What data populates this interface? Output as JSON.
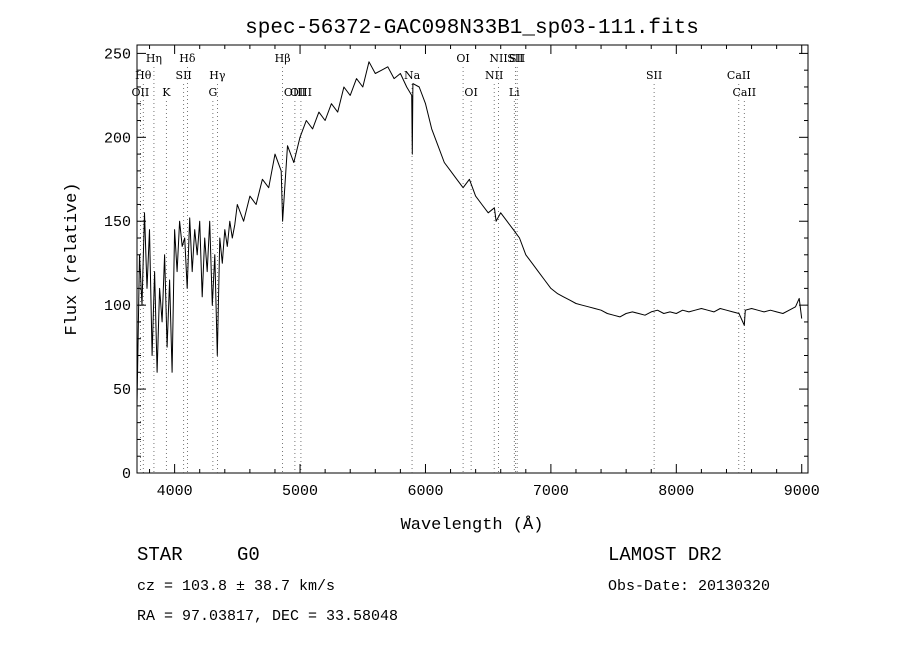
{
  "chart_data": {
    "type": "line",
    "title": "spec-56372-GAC098N33B1_sp03-111.fits",
    "xlabel": "Wavelength (Å)",
    "ylabel": "Flux (relative)",
    "xlim": [
      3700,
      9050
    ],
    "ylim": [
      0,
      255
    ],
    "xticks": [
      4000,
      5000,
      6000,
      7000,
      8000,
      9000
    ],
    "yticks": [
      0,
      50,
      100,
      150,
      200,
      250
    ],
    "grid": false,
    "series": [
      {
        "x": [
          3700,
          3720,
          3740,
          3760,
          3780,
          3800,
          3820,
          3840,
          3860,
          3880,
          3900,
          3920,
          3940,
          3960,
          3980,
          4000,
          4020,
          4040,
          4060,
          4080,
          4100,
          4120,
          4140,
          4160,
          4180,
          4200,
          4220,
          4240,
          4260,
          4280,
          4300,
          4320,
          4340,
          4360,
          4380,
          4400,
          4420,
          4440,
          4460,
          4480,
          4500,
          4550,
          4600,
          4650,
          4700,
          4750,
          4800,
          4850,
          4861,
          4900,
          4950,
          5000,
          5050,
          5100,
          5150,
          5200,
          5250,
          5300,
          5350,
          5400,
          5450,
          5500,
          5550,
          5600,
          5650,
          5700,
          5750,
          5800,
          5850,
          5890,
          5895,
          5900,
          5950,
          6000,
          6050,
          6100,
          6150,
          6200,
          6250,
          6300,
          6350,
          6400,
          6450,
          6500,
          6550,
          6563,
          6600,
          6650,
          6700,
          6750,
          6800,
          6850,
          6900,
          6950,
          7000,
          7050,
          7100,
          7150,
          7200,
          7250,
          7300,
          7350,
          7400,
          7450,
          7500,
          7550,
          7600,
          7650,
          7700,
          7750,
          7800,
          7850,
          7900,
          7950,
          8000,
          8050,
          8100,
          8150,
          8200,
          8250,
          8300,
          8350,
          8400,
          8450,
          8500,
          8542,
          8550,
          8600,
          8650,
          8700,
          8750,
          8800,
          8850,
          8900,
          8950,
          8980,
          9000
        ],
        "y": [
          40,
          130,
          100,
          155,
          110,
          145,
          70,
          120,
          60,
          110,
          90,
          130,
          75,
          115,
          60,
          145,
          120,
          150,
          135,
          140,
          110,
          152,
          120,
          145,
          130,
          150,
          105,
          140,
          120,
          150,
          100,
          130,
          70,
          140,
          125,
          145,
          135,
          150,
          140,
          148,
          160,
          150,
          165,
          160,
          175,
          170,
          190,
          180,
          150,
          195,
          185,
          200,
          210,
          205,
          215,
          210,
          220,
          215,
          230,
          225,
          235,
          230,
          245,
          238,
          240,
          242,
          235,
          238,
          230,
          225,
          190,
          232,
          230,
          220,
          205,
          195,
          185,
          180,
          175,
          170,
          175,
          165,
          160,
          155,
          158,
          150,
          155,
          150,
          145,
          140,
          130,
          125,
          120,
          115,
          110,
          107,
          105,
          103,
          101,
          100,
          99,
          98,
          97,
          95,
          94,
          93,
          95,
          96,
          95,
          94,
          96,
          97,
          95,
          96,
          95,
          97,
          96,
          97,
          98,
          97,
          96,
          98,
          97,
          96,
          95,
          88,
          97,
          98,
          97,
          96,
          97,
          96,
          95,
          97,
          99,
          104,
          92
        ],
        "color": "#000000"
      }
    ],
    "line_markers": [
      {
        "label": "OII",
        "x": 3727,
        "row": 3
      },
      {
        "label": "Hθ",
        "x": 3750,
        "row": 2
      },
      {
        "label": "Hη",
        "x": 3835,
        "row": 1
      },
      {
        "label": "K",
        "x": 3934,
        "row": 3
      },
      {
        "label": "SII",
        "x": 4072,
        "row": 2
      },
      {
        "label": "Hδ",
        "x": 4102,
        "row": 1
      },
      {
        "label": "G",
        "x": 4305,
        "row": 3
      },
      {
        "label": "Hγ",
        "x": 4341,
        "row": 2
      },
      {
        "label": "Hβ",
        "x": 4861,
        "row": 1
      },
      {
        "label": "OIII",
        "x": 4959,
        "row": 3
      },
      {
        "label": "OIII",
        "x": 5007,
        "row": 3
      },
      {
        "label": "Na",
        "x": 5893,
        "row": 2
      },
      {
        "label": "OI",
        "x": 6300,
        "row": 1
      },
      {
        "label": "OI",
        "x": 6364,
        "row": 3
      },
      {
        "label": "NII",
        "x": 6548,
        "row": 2
      },
      {
        "label": "NII",
        "x": 6583,
        "row": 1
      },
      {
        "label": "SII",
        "x": 6717,
        "row": 1
      },
      {
        "label": "Li",
        "x": 6708,
        "row": 3
      },
      {
        "label": "SII",
        "x": 6731,
        "row": 1
      },
      {
        "label": "SII",
        "x": 7823,
        "row": 2
      },
      {
        "label": "CaII",
        "x": 8498,
        "row": 2
      },
      {
        "label": "CaII",
        "x": 8542,
        "row": 3
      }
    ]
  },
  "info": {
    "object_type": "STAR",
    "subclass": "G0",
    "survey": "LAMOST DR2",
    "velocity": "cz = 103.8 ± 38.7 km/s",
    "obs_date": "Obs-Date: 20130320",
    "coords": "RA =  97.03817, DEC =  33.58048"
  }
}
